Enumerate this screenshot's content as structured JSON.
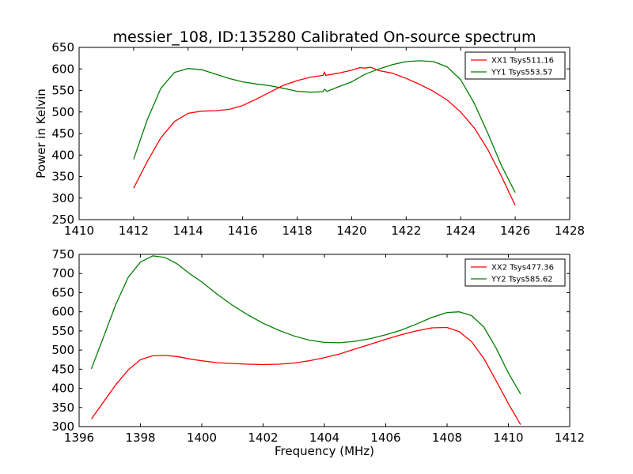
{
  "figure": {
    "title": "messier_108, ID:135280 Calibrated On-source spectrum",
    "ylabel": "Power in Kelvin",
    "xlabel": "Frequency (MHz)",
    "colors": {
      "red": "#ff0000",
      "green": "#008000"
    }
  },
  "chart_data": [
    {
      "type": "line",
      "title": "messier_108, ID:135280 Calibrated On-source spectrum",
      "xlabel": "",
      "ylabel": "Power in Kelvin",
      "xlim": [
        1410,
        1428
      ],
      "ylim": [
        250,
        650
      ],
      "xticks": [
        1410,
        1412,
        1414,
        1416,
        1418,
        1420,
        1422,
        1424,
        1426,
        1428
      ],
      "yticks": [
        250,
        300,
        350,
        400,
        450,
        500,
        550,
        600,
        650
      ],
      "grid": false,
      "legend": "top-right",
      "series": [
        {
          "name": "XX1 Tsys511.16",
          "color": "#ff0000",
          "points": [
            [
              1412.0,
              323
            ],
            [
              1412.5,
              385
            ],
            [
              1413.0,
              440
            ],
            [
              1413.5,
              478
            ],
            [
              1414.0,
              497
            ],
            [
              1414.5,
              502
            ],
            [
              1415.0,
              503
            ],
            [
              1415.5,
              506
            ],
            [
              1416.0,
              515
            ],
            [
              1416.5,
              530
            ],
            [
              1417.0,
              546
            ],
            [
              1417.5,
              562
            ],
            [
              1418.0,
              573
            ],
            [
              1418.5,
              581
            ],
            [
              1418.95,
              585
            ],
            [
              1419.0,
              593
            ],
            [
              1419.05,
              585
            ],
            [
              1419.5,
              590
            ],
            [
              1420.0,
              597
            ],
            [
              1420.3,
              603
            ],
            [
              1420.5,
              602
            ],
            [
              1420.7,
              604
            ],
            [
              1421.0,
              596
            ],
            [
              1421.5,
              590
            ],
            [
              1422.0,
              578
            ],
            [
              1422.5,
              564
            ],
            [
              1423.0,
              548
            ],
            [
              1423.5,
              528
            ],
            [
              1424.0,
              500
            ],
            [
              1424.5,
              463
            ],
            [
              1425.0,
              412
            ],
            [
              1425.5,
              350
            ],
            [
              1426.0,
              283
            ]
          ]
        },
        {
          "name": "YY1 Tsys553.57",
          "color": "#008000",
          "points": [
            [
              1412.0,
              390
            ],
            [
              1412.5,
              482
            ],
            [
              1413.0,
              555
            ],
            [
              1413.5,
              592
            ],
            [
              1414.0,
              601
            ],
            [
              1414.5,
              598
            ],
            [
              1415.0,
              588
            ],
            [
              1415.5,
              578
            ],
            [
              1416.0,
              570
            ],
            [
              1416.5,
              565
            ],
            [
              1417.0,
              561
            ],
            [
              1417.5,
              555
            ],
            [
              1418.0,
              548
            ],
            [
              1418.5,
              546
            ],
            [
              1418.95,
              547
            ],
            [
              1419.0,
              553
            ],
            [
              1419.1,
              548
            ],
            [
              1419.5,
              558
            ],
            [
              1420.0,
              570
            ],
            [
              1420.5,
              588
            ],
            [
              1421.0,
              600
            ],
            [
              1421.5,
              610
            ],
            [
              1422.0,
              617
            ],
            [
              1422.5,
              619
            ],
            [
              1423.0,
              617
            ],
            [
              1423.5,
              605
            ],
            [
              1424.0,
              575
            ],
            [
              1424.5,
              520
            ],
            [
              1425.0,
              450
            ],
            [
              1425.5,
              375
            ],
            [
              1426.0,
              313
            ]
          ]
        }
      ]
    },
    {
      "type": "line",
      "title": "",
      "xlabel": "Frequency (MHz)",
      "ylabel": "",
      "xlim": [
        1396,
        1412
      ],
      "ylim": [
        300,
        750
      ],
      "xticks": [
        1396,
        1398,
        1400,
        1402,
        1404,
        1406,
        1408,
        1410,
        1412
      ],
      "yticks": [
        300,
        350,
        400,
        450,
        500,
        550,
        600,
        650,
        700,
        750
      ],
      "grid": false,
      "legend": "top-right",
      "series": [
        {
          "name": "XX2 Tsys477.36",
          "color": "#ff0000",
          "points": [
            [
              1396.4,
              320
            ],
            [
              1396.8,
              365
            ],
            [
              1397.2,
              410
            ],
            [
              1397.6,
              448
            ],
            [
              1398.0,
              475
            ],
            [
              1398.4,
              485
            ],
            [
              1398.8,
              486
            ],
            [
              1399.2,
              483
            ],
            [
              1399.6,
              477
            ],
            [
              1400.0,
              472
            ],
            [
              1400.5,
              467
            ],
            [
              1401.0,
              465
            ],
            [
              1401.5,
              463
            ],
            [
              1402.0,
              462
            ],
            [
              1402.5,
              463
            ],
            [
              1403.0,
              466
            ],
            [
              1403.5,
              472
            ],
            [
              1404.0,
              480
            ],
            [
              1404.5,
              490
            ],
            [
              1405.0,
              503
            ],
            [
              1405.5,
              515
            ],
            [
              1406.0,
              528
            ],
            [
              1406.5,
              540
            ],
            [
              1407.0,
              550
            ],
            [
              1407.5,
              558
            ],
            [
              1408.0,
              559
            ],
            [
              1408.4,
              548
            ],
            [
              1408.8,
              522
            ],
            [
              1409.2,
              478
            ],
            [
              1409.6,
              420
            ],
            [
              1410.0,
              360
            ],
            [
              1410.4,
              305
            ]
          ]
        },
        {
          "name": "YY2 Tsys585.62",
          "color": "#008000",
          "points": [
            [
              1396.4,
              451
            ],
            [
              1396.8,
              535
            ],
            [
              1397.2,
              620
            ],
            [
              1397.6,
              690
            ],
            [
              1398.0,
              730
            ],
            [
              1398.4,
              746
            ],
            [
              1398.8,
              742
            ],
            [
              1399.2,
              725
            ],
            [
              1399.6,
              700
            ],
            [
              1400.0,
              678
            ],
            [
              1400.5,
              646
            ],
            [
              1401.0,
              617
            ],
            [
              1401.5,
              592
            ],
            [
              1402.0,
              570
            ],
            [
              1402.5,
              552
            ],
            [
              1403.0,
              537
            ],
            [
              1403.5,
              526
            ],
            [
              1404.0,
              520
            ],
            [
              1404.5,
              519
            ],
            [
              1405.0,
              523
            ],
            [
              1405.5,
              530
            ],
            [
              1406.0,
              540
            ],
            [
              1406.5,
              552
            ],
            [
              1407.0,
              568
            ],
            [
              1407.5,
              585
            ],
            [
              1408.0,
              598
            ],
            [
              1408.4,
              600
            ],
            [
              1408.8,
              590
            ],
            [
              1409.2,
              560
            ],
            [
              1409.6,
              505
            ],
            [
              1410.0,
              440
            ],
            [
              1410.4,
              385
            ]
          ]
        }
      ]
    }
  ]
}
